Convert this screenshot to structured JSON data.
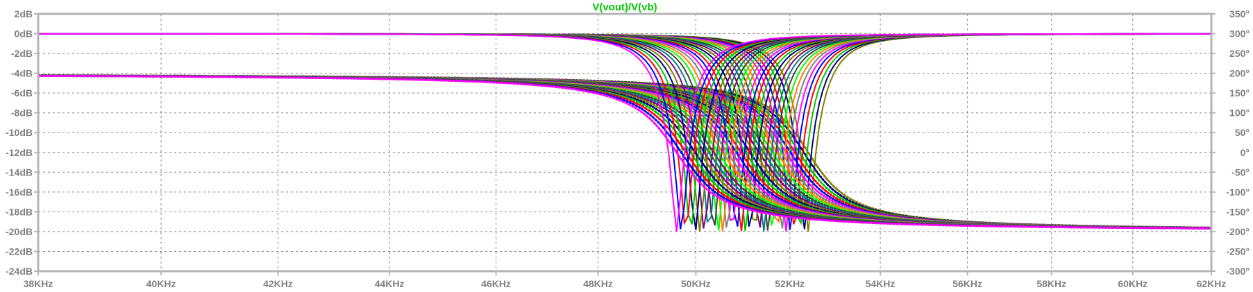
{
  "chart_data": {
    "type": "line",
    "title": "V(vout)/V(vb)",
    "title_color": "#00c800",
    "background": "#ffffff",
    "frame_color": "#b4b4b4",
    "grid": true,
    "grid_color": "#808080",
    "x": {
      "min": 38000,
      "max": 62000,
      "scale": "log",
      "ticks": [
        38000,
        40000,
        42000,
        44000,
        46000,
        48000,
        50000,
        52000,
        54000,
        56000,
        58000,
        60000,
        62000
      ],
      "tick_labels": [
        "38KHz",
        "40KHz",
        "42KHz",
        "44KHz",
        "46KHz",
        "48KHz",
        "50KHz",
        "52KHz",
        "54KHz",
        "56KHz",
        "58KHz",
        "60KHz",
        "62KHz"
      ]
    },
    "y_left": {
      "unit": "dB",
      "min": -24,
      "max": 2,
      "ticks": [
        2,
        0,
        -2,
        -4,
        -6,
        -8,
        -10,
        -12,
        -14,
        -16,
        -18,
        -20,
        -22,
        -24
      ],
      "tick_labels": [
        "2dB",
        "0dB",
        "-2dB",
        "-4dB",
        "-6dB",
        "-8dB",
        "-10dB",
        "-12dB",
        "-14dB",
        "-16dB",
        "-18dB",
        "-20dB",
        "-22dB",
        "-24dB"
      ]
    },
    "y_right": {
      "unit": "degrees",
      "min": -300,
      "max": 350,
      "ticks": [
        350,
        300,
        250,
        200,
        150,
        100,
        50,
        0,
        -50,
        -100,
        -150,
        -200,
        -250,
        -300
      ],
      "tick_labels": [
        "350°",
        "300°",
        "250°",
        "200°",
        "150°",
        "100°",
        "50°",
        "0°",
        "-50°",
        "-100°",
        "-150°",
        "-200°",
        "-250°",
        "-300°"
      ]
    },
    "sweep": {
      "notch_freq_start": 49600,
      "notch_freq_end": 52400,
      "traces": 30,
      "notch_depth_db": -20,
      "notch_bandwidth_hz": 1400,
      "passband_db": 0,
      "phase_low_deg": 200,
      "phase_high_deg": -200
    },
    "series_colors": [
      "#ff00ff",
      "#0000ff",
      "#ff0000",
      "#00c800",
      "#000080",
      "#808000",
      "#800080",
      "#008080",
      "#404040",
      "#00ff00",
      "#ff8000",
      "#808080"
    ]
  }
}
